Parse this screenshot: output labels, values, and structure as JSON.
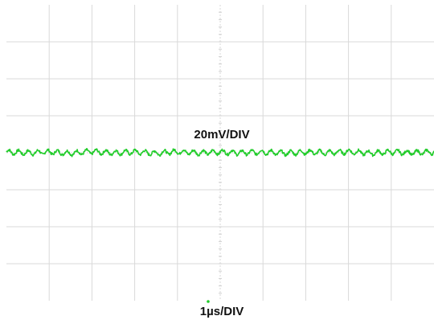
{
  "chart_data": {
    "type": "line",
    "title": "",
    "xlabel": "",
    "ylabel": "",
    "vertical_scale_label": "20mV/DIV",
    "horizontal_scale_label": "1µs/DIV",
    "grid": true,
    "grid_divisions": {
      "x": 10,
      "y": 8
    },
    "xlim": [
      0,
      10
    ],
    "ylim": [
      -4,
      4
    ],
    "trace_color": "#22cc2b",
    "grid_color": "#d9d9d9",
    "series": [
      {
        "x": [
          0,
          0.5,
          1.0,
          1.5,
          2.0,
          2.5,
          3.0,
          3.5,
          4.0,
          4.5,
          5.0,
          5.5,
          6.0,
          6.5,
          7.0,
          7.5,
          8.0,
          8.5,
          9.0,
          9.5,
          10.0
        ],
        "y": [
          0.02,
          0.0,
          0.02,
          -0.01,
          0.03,
          0.0,
          0.02,
          -0.01,
          0.03,
          0.0,
          0.02,
          0.0,
          0.02,
          -0.01,
          0.02,
          0.0,
          0.03,
          -0.01,
          0.02,
          0.0,
          0.02
        ]
      }
    ]
  }
}
